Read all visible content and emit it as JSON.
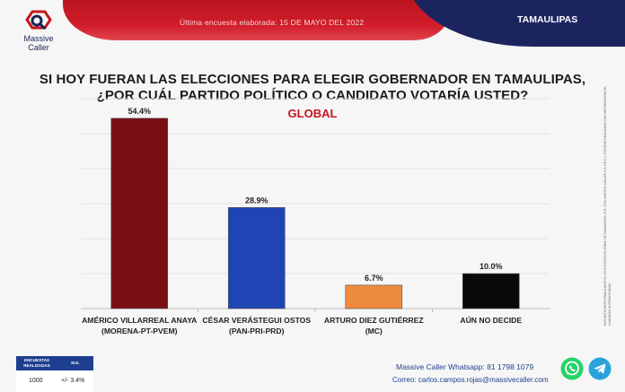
{
  "header": {
    "date_text": "Última encuesta elaborada: 15 DE MAYO DEL 2022",
    "state": "TAMAULIPAS"
  },
  "logo": {
    "line1": "Massive",
    "line2": "Caller"
  },
  "title_line1": "SI HOY FUERAN LAS ELECCIONES PARA ELEGIR GOBERNADOR EN TAMAULIPAS,",
  "title_line2": "¿POR CUÁL PARTIDO POLÍTICO O CANDIDATO VOTARÍA USTED?",
  "subtitle": "GLOBAL",
  "chart_data": {
    "type": "bar",
    "categories": [
      [
        "AMÉRICO VILLARREAL ANAYA",
        "(MORENA-PT-PVEM)"
      ],
      [
        "CÉSAR VERÁSTEGUI OSTOS",
        "(PAN-PRI-PRD)"
      ],
      [
        "ARTURO DIEZ GUTIÉRREZ",
        "(MC)"
      ],
      [
        "AÚN NO DECIDE"
      ]
    ],
    "values": [
      54.4,
      28.9,
      6.7,
      10.0
    ],
    "value_labels": [
      "54.4%",
      "28.9%",
      "6.7%",
      "10.0%"
    ],
    "colors": [
      "#7a0f13",
      "#1f45b5",
      "#ee8a3c",
      "#0a0a0a"
    ],
    "ylim": [
      0,
      60
    ],
    "grid": true
  },
  "side_note": "ENCUESTA REGISTRADA ANTE EL INSTITUTO ELECTORAL DE TAMAULIPAS. D.R. 2022 MASSIVE CALLER S.A. DE C.V. ESTUDIO REALIZADO CON METODOLOGÍA DE LLAMADAS AUTOMATIZADAS.",
  "stats": {
    "header_1": "ENCUESTAS REALIZADAS",
    "header_2": "M.E.",
    "value_1": "1000",
    "value_2": "+/- 3.4%"
  },
  "contact": {
    "whatsapp": "Massive Caller Whatsapp: 81 1798 1079",
    "email": "Correo: carlos.campos.rojas@massivecaller.com"
  },
  "icons": {
    "whatsapp": "whatsapp-icon",
    "telegram": "telegram-icon"
  }
}
